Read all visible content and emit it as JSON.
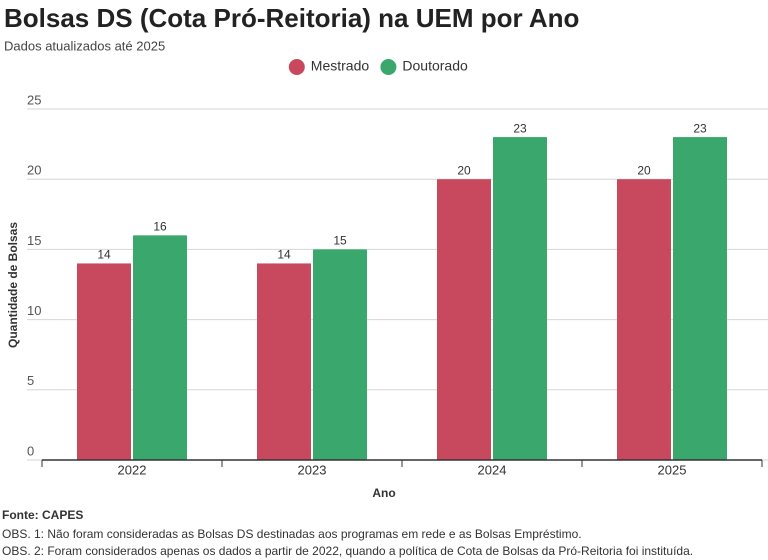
{
  "chart_data": {
    "type": "bar",
    "title": "Bolsas DS (Cota Pró-Reitoria) na UEM por Ano",
    "subtitle": "Dados atualizados até 2025",
    "x_label": "Ano",
    "y_label": "Quantidade de Bolsas",
    "categories": [
      "2022",
      "2023",
      "2024",
      "2025"
    ],
    "series": [
      {
        "name": "Mestrado",
        "color": "#c8485e",
        "values": [
          14,
          14,
          20,
          20
        ]
      },
      {
        "name": "Doutorado",
        "color": "#3aa76d",
        "values": [
          16,
          15,
          23,
          23
        ]
      }
    ],
    "ylim": [
      0,
      25
    ],
    "yticks": [
      0,
      5,
      10,
      15,
      20,
      25
    ],
    "grid": true,
    "legend": "top",
    "source": "Fonte: CAPES",
    "notes": [
      "OBS. 1: Não foram consideradas as Bolsas DS destinadas aos programas em rede e as Bolsas Empréstimo.",
      "OBS. 2: Foram considerados apenas os dados a partir de 2022, quando a política de Cota de Bolsas da Pró-Reitoria foi instituída."
    ]
  }
}
